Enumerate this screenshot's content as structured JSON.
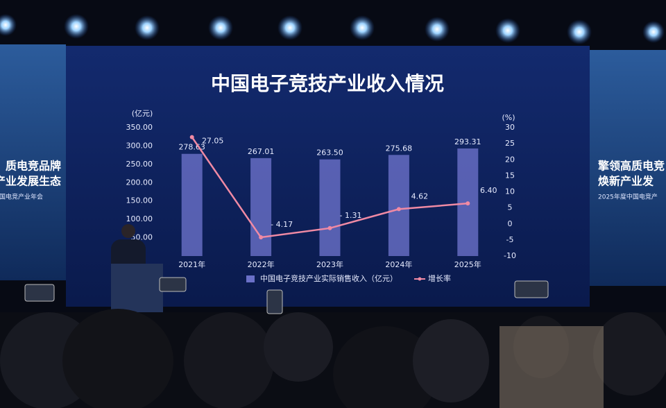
{
  "chart_data": {
    "type": "bar-line",
    "title": "中国电子竞技产业收入情况",
    "y_unit": "(亿元)",
    "y2_unit": "(%)",
    "categories": [
      "2021年",
      "2022年",
      "2023年",
      "2024年",
      "2025年"
    ],
    "series": [
      {
        "name": "中国电子竞技产业实际销售收入（亿元）",
        "type": "bar",
        "color": "#6a70c8",
        "values": [
          278.63,
          267.01,
          263.5,
          275.68,
          293.31
        ],
        "value_labels": [
          "278.63",
          "267.01",
          "263.50",
          "275.68",
          "293.31"
        ]
      },
      {
        "name": "增长率",
        "type": "line",
        "axis": "y2",
        "color": "#f08aa4",
        "values": [
          27.05,
          -4.17,
          -1.31,
          4.62,
          6.4
        ],
        "value_labels": [
          "27.05",
          "- 4.17",
          "- 1.31",
          "4.62",
          "6.40"
        ]
      }
    ],
    "ylim": [
      0,
      350
    ],
    "yticks": [
      {
        "value": 50,
        "label": "50.00"
      },
      {
        "value": 100,
        "label": "100.00"
      },
      {
        "value": 150,
        "label": "150.00"
      },
      {
        "value": 200,
        "label": "200.00"
      },
      {
        "value": 250,
        "label": "250.00"
      },
      {
        "value": 300,
        "label": "300.00"
      },
      {
        "value": 350,
        "label": "350.00"
      }
    ],
    "y2lim": [
      -10,
      30
    ],
    "y2ticks": [
      30,
      25,
      20,
      15,
      10,
      5,
      0,
      -5,
      -10
    ],
    "legend": "bottom"
  },
  "banners": {
    "left": [
      "质电竞品牌",
      "产业发展生态",
      "中国电竞产业年会"
    ],
    "right": [
      "擎领高质电竞",
      "焕新产业发",
      "2025年度中国电竞产"
    ]
  }
}
